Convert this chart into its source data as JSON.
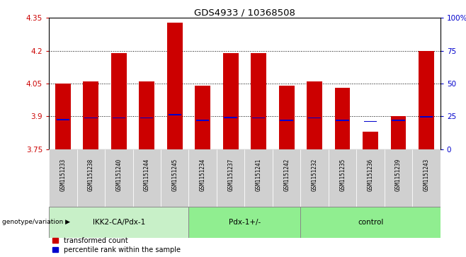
{
  "title": "GDS4933 / 10368508",
  "samples": [
    "GSM1151233",
    "GSM1151238",
    "GSM1151240",
    "GSM1151244",
    "GSM1151245",
    "GSM1151234",
    "GSM1151237",
    "GSM1151241",
    "GSM1151242",
    "GSM1151232",
    "GSM1151235",
    "GSM1151236",
    "GSM1151239",
    "GSM1151243"
  ],
  "groups": [
    {
      "label": "IKK2-CA/Pdx-1",
      "count": 5
    },
    {
      "label": "Pdx-1+/-",
      "count": 4
    },
    {
      "label": "control",
      "count": 5
    }
  ],
  "red_tops": [
    4.05,
    4.06,
    4.19,
    4.06,
    4.33,
    4.04,
    4.19,
    4.19,
    4.04,
    4.06,
    4.03,
    3.83,
    3.9,
    4.2
  ],
  "blue_marks": [
    3.885,
    3.892,
    3.892,
    3.892,
    3.908,
    3.882,
    3.895,
    3.892,
    3.882,
    3.893,
    3.882,
    3.877,
    3.882,
    3.898
  ],
  "bar_bottom": 3.75,
  "ylim_left": [
    3.75,
    4.35
  ],
  "ylim_right": [
    0,
    100
  ],
  "yticks_left": [
    3.75,
    3.9,
    4.05,
    4.2,
    4.35
  ],
  "yticks_right": [
    0,
    25,
    50,
    75,
    100
  ],
  "ytick_labels_left": [
    "3.75",
    "3.9",
    "4.05",
    "4.2",
    "4.35"
  ],
  "ytick_labels_right": [
    "0",
    "25",
    "50",
    "75",
    "100%"
  ],
  "red_color": "#cc0000",
  "blue_color": "#0000cc",
  "bar_width": 0.55,
  "group_bg_color": "#d0d0d0",
  "group1_color": "#c8f0c8",
  "group2_color": "#90ee90",
  "group3_color": "#90ee90",
  "legend_red": "transformed count",
  "legend_blue": "percentile rank within the sample",
  "xlabel_left": "genotype/variation",
  "title_color": "#000000",
  "left_tick_color": "#cc0000",
  "right_tick_color": "#0000cc"
}
